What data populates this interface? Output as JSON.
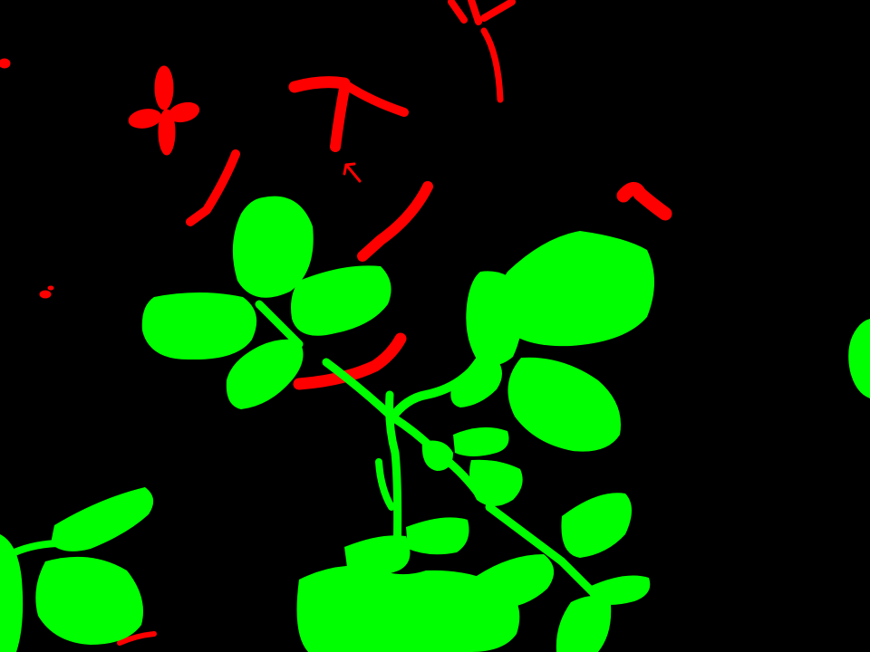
{
  "image": {
    "background_color": "#000000",
    "colors": {
      "plant": "#00ff00",
      "weed": "#ff0000"
    },
    "legend": []
  }
}
